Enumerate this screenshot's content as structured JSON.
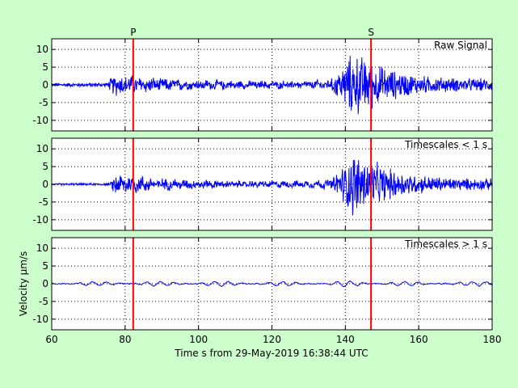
{
  "chart_data": {
    "type": "line",
    "xlabel": "Time s from 29-May-2019 16:38:44 UTC",
    "ylabel": "Velocity µm/s",
    "xlim": [
      60,
      180
    ],
    "ylim": [
      -13,
      13
    ],
    "xticks": [
      60,
      80,
      100,
      120,
      140,
      160,
      180
    ],
    "yticks": [
      -10,
      -5,
      0,
      5,
      10
    ],
    "grid": true,
    "grid_style": "dotted",
    "line_color": "#0000ff",
    "marker_color": "#ff0000",
    "markers": [
      {
        "label": "P",
        "x": 82.2
      },
      {
        "label": "S",
        "x": 147.0
      }
    ],
    "panels": [
      {
        "title": "Raw Signal",
        "envelope": [
          [
            60,
            0.6
          ],
          [
            75,
            0.7
          ],
          [
            77,
            3.5
          ],
          [
            78,
            3.5
          ],
          [
            82,
            3.0
          ],
          [
            90,
            2.0
          ],
          [
            100,
            1.6
          ],
          [
            110,
            1.3
          ],
          [
            120,
            1.2
          ],
          [
            130,
            1.3
          ],
          [
            136,
            1.8
          ],
          [
            140,
            7.0
          ],
          [
            142,
            10.5
          ],
          [
            145,
            9.0
          ],
          [
            148,
            7.0
          ],
          [
            152,
            5.0
          ],
          [
            160,
            3.0
          ],
          [
            170,
            2.2
          ],
          [
            180,
            2.0
          ]
        ]
      },
      {
        "title": "Timescales < 1 s",
        "envelope": [
          [
            60,
            0.3
          ],
          [
            76,
            0.4
          ],
          [
            77,
            3.5
          ],
          [
            78,
            3.5
          ],
          [
            82,
            3.0
          ],
          [
            90,
            1.8
          ],
          [
            100,
            1.4
          ],
          [
            110,
            1.1
          ],
          [
            120,
            1.0
          ],
          [
            130,
            1.1
          ],
          [
            136,
            1.6
          ],
          [
            140,
            7.0
          ],
          [
            142,
            10.5
          ],
          [
            145,
            9.0
          ],
          [
            148,
            7.0
          ],
          [
            152,
            5.0
          ],
          [
            160,
            3.0
          ],
          [
            170,
            2.0
          ],
          [
            180,
            1.8
          ]
        ]
      },
      {
        "title": "Timescales > 1 s",
        "envelope": [
          [
            60,
            0.5
          ],
          [
            80,
            0.6
          ],
          [
            100,
            0.7
          ],
          [
            120,
            0.6
          ],
          [
            140,
            0.7
          ],
          [
            145,
            0.8
          ],
          [
            160,
            0.6
          ],
          [
            175,
            0.5
          ],
          [
            178,
            1.0
          ],
          [
            180,
            1.2
          ]
        ]
      }
    ]
  }
}
